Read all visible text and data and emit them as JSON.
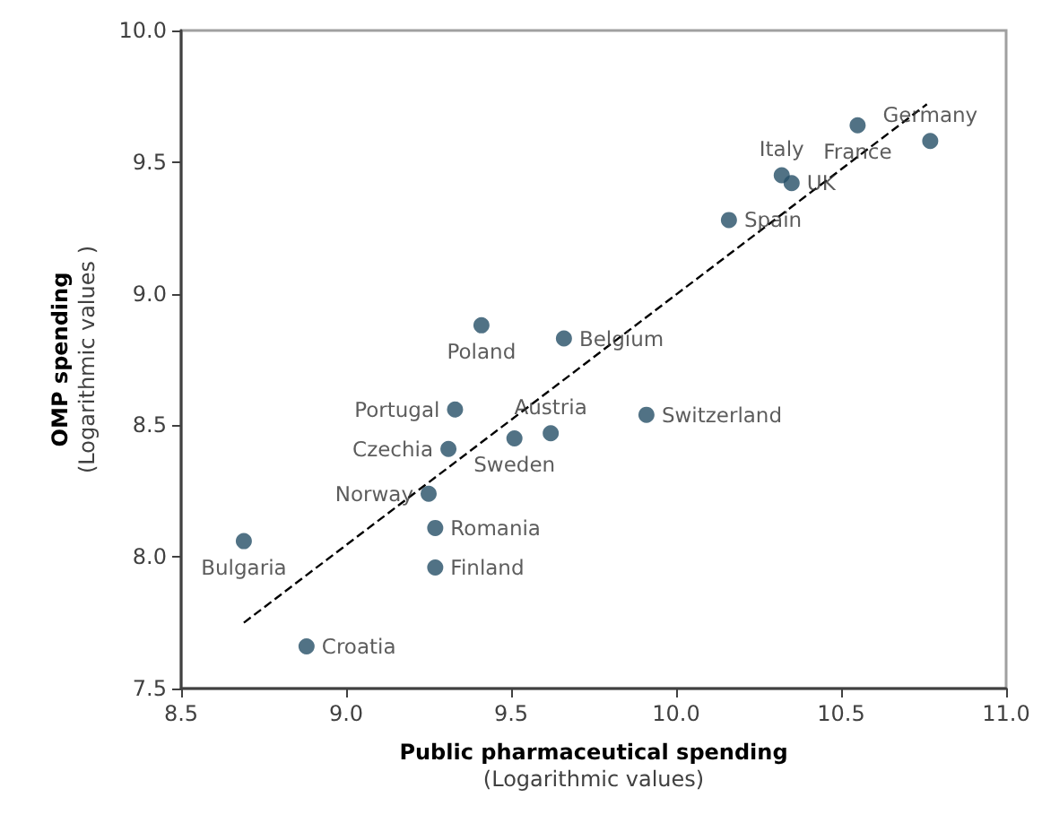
{
  "chart_data": {
    "type": "scatter",
    "xlabel": "Public pharmaceutical spending\n(Logarithmic values)",
    "ylabel": "OMP spending\n(Logarithmic values )",
    "xlim": [
      8.5,
      11.0
    ],
    "ylim": [
      7.5,
      10.0
    ],
    "xticks": [
      {
        "value": 8.5,
        "label": "8.5"
      },
      {
        "value": 9.0,
        "label": "9.0"
      },
      {
        "value": 9.5,
        "label": "9.5"
      },
      {
        "value": 10.0,
        "label": "10.0"
      },
      {
        "value": 10.5,
        "label": "10.5"
      },
      {
        "value": 11.0,
        "label": "11.0"
      }
    ],
    "yticks": [
      {
        "value": 7.5,
        "label": "7.5"
      },
      {
        "value": 8.0,
        "label": "8.0"
      },
      {
        "value": 8.5,
        "label": "8.5"
      },
      {
        "value": 9.0,
        "label": "9.0"
      },
      {
        "value": 9.5,
        "label": "9.5"
      },
      {
        "value": 10.0,
        "label": "10.0"
      }
    ],
    "grid": false,
    "series": [
      {
        "color": "#264f66",
        "marker": "circle",
        "x": [
          10.77,
          10.55,
          10.32,
          10.35,
          10.16,
          9.41,
          9.66,
          9.33,
          9.62,
          9.51,
          9.91,
          9.31,
          9.25,
          9.27,
          9.27,
          8.69,
          8.88
        ],
        "values": [
          9.58,
          9.64,
          9.45,
          9.42,
          9.28,
          8.88,
          8.83,
          8.56,
          8.47,
          8.45,
          8.54,
          8.41,
          8.24,
          8.11,
          7.96,
          8.06,
          7.66
        ],
        "value_labels": [
          "Germany",
          "France",
          "Italy",
          "UK",
          "Spain",
          "Poland",
          "Belgium",
          "Portugal",
          "Austria",
          "Sweden",
          "Switzerland",
          "Czechia",
          "Norway",
          "Romania",
          "Finland",
          "Bulgaria",
          "Croatia"
        ]
      },
      {
        "type": "line",
        "color": "#000000",
        "marker": "none",
        "line_style": "dashed",
        "x": [
          8.69,
          10.76
        ],
        "values": [
          7.75,
          9.72
        ]
      }
    ]
  }
}
